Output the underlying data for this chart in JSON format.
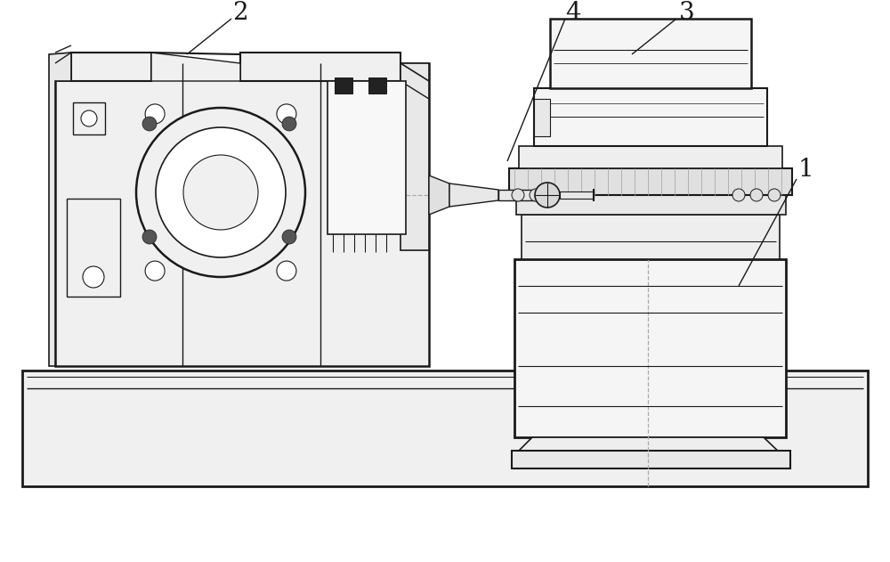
{
  "bg_color": "#ffffff",
  "lc": "#1a1a1a",
  "fc_white": "#ffffff",
  "fc_light": "#f5f5f5",
  "fc_mid": "#e8e8e8",
  "fc_dark": "#d8d8d8",
  "dc": "#aaaaaa",
  "figsize": [
    10.0,
    6.31
  ],
  "dpi": 100
}
